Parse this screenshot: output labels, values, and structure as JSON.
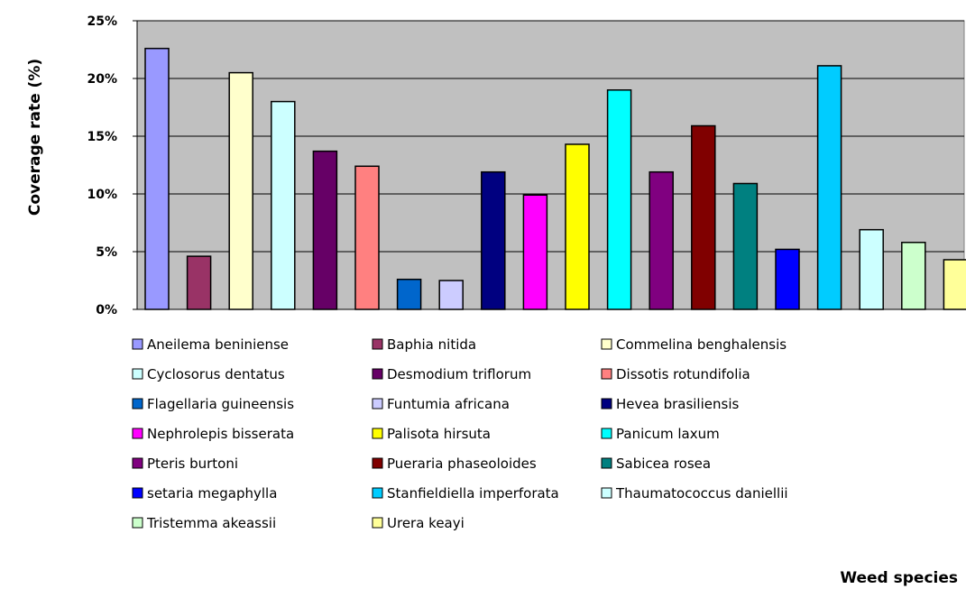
{
  "chart_data": {
    "type": "bar",
    "title": "",
    "xlabel": "Weed species",
    "ylabel": "Coverage rate (%)",
    "ylim": [
      0,
      25
    ],
    "yticks": [
      0,
      5,
      10,
      15,
      20,
      25
    ],
    "ytick_labels": [
      "0%",
      "5%",
      "10%",
      "15%",
      "20%",
      "25%"
    ],
    "grid": true,
    "plot_background": "#c0c0c0",
    "legend_position": "bottom",
    "categories": [
      "Aneilema beniniense",
      "Baphia nitida",
      "Commelina benghalensis",
      "Cyclosorus dentatus",
      "Desmodium triflorum",
      "Dissotis rotundifolia",
      "Flagellaria guineensis",
      "Funtumia africana",
      "Hevea brasiliensis",
      "Nephrolepis bisserata",
      "Palisota hirsuta",
      "Panicum laxum",
      "Pteris burtoni",
      "Pueraria phaseoloides",
      "Sabicea rosea",
      "setaria megaphylla",
      "Stanfieldiella imperforata",
      "Thaumatococcus daniellii",
      "Tristemma akeassii",
      "Urera keayi"
    ],
    "values": [
      22.6,
      4.6,
      20.5,
      18.0,
      13.7,
      12.4,
      2.6,
      2.5,
      11.9,
      9.9,
      14.3,
      19.0,
      11.9,
      15.9,
      10.9,
      5.2,
      21.1,
      6.9,
      5.8,
      4.3
    ],
    "colors": [
      "#9999ff",
      "#993366",
      "#ffffcc",
      "#ccffff",
      "#660066",
      "#ff8080",
      "#0066cc",
      "#ccccff",
      "#000080",
      "#ff00ff",
      "#ffff00",
      "#00ffff",
      "#800080",
      "#800000",
      "#008080",
      "#0000ff",
      "#00ccff",
      "#ccffff",
      "#ccffcc",
      "#ffff99"
    ]
  }
}
